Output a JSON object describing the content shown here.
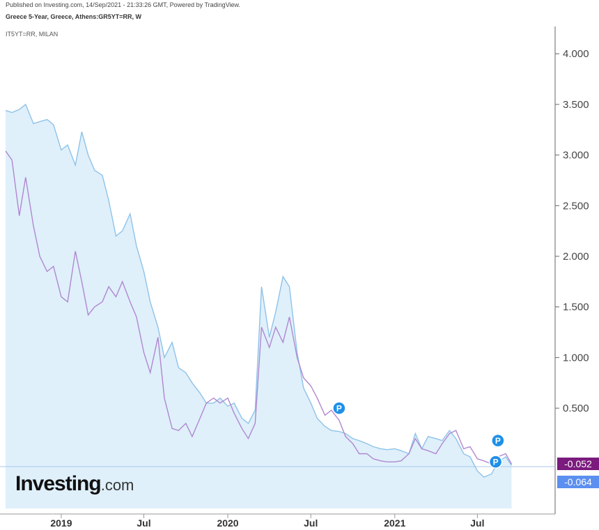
{
  "header": {
    "published": "Published on Investing.com, 14/Sep/2021 - 21:33:26 GMT, Powered by TradingView.",
    "title": "Greece 5-Year, Greece, Athens:GR5YT=RR, W",
    "compare": "IT5YT=RR, MILAN"
  },
  "logo": {
    "brand": "Investing",
    "suffix": ".com"
  },
  "price_tags": {
    "italy_last": "-0.052",
    "greece_last": "-0.064"
  },
  "colors": {
    "greece": "#8ec2e8",
    "greece_fill": "#dff0fb",
    "italy": "#b087d0",
    "italy_tag": "#7b1b7e",
    "greece_tag": "#5b8ff0",
    "marker": "#1e90e8"
  },
  "markers": {
    "label": "P",
    "count": 3
  },
  "chart_data": {
    "type": "line",
    "title": "Greece 5-Year, Greece, Athens:GR5YT=RR, W",
    "xlabel": "",
    "ylabel": "",
    "ylim": [
      -0.4,
      4.3
    ],
    "y_ticks": [
      "4.000",
      "3.500",
      "3.000",
      "2.500",
      "2.000",
      "1.500",
      "1.000",
      "0.500"
    ],
    "x_ticks": [
      "2019",
      "Jul",
      "2020",
      "Jul",
      "2021",
      "Jul"
    ],
    "x_tick_dates": [
      "2019-01-01",
      "2019-07-01",
      "2020-01-01",
      "2020-07-01",
      "2021-01-01",
      "2021-07-01"
    ],
    "x_range": [
      "2018-09-01",
      "2021-09-30"
    ],
    "series": [
      {
        "name": "Greece 5-Year",
        "points": [
          [
            "2018-09-01",
            3.44
          ],
          [
            "2018-09-15",
            3.42
          ],
          [
            "2018-10-01",
            3.45
          ],
          [
            "2018-10-15",
            3.5
          ],
          [
            "2018-11-01",
            3.31
          ],
          [
            "2018-11-15",
            3.33
          ],
          [
            "2018-12-01",
            3.35
          ],
          [
            "2018-12-15",
            3.3
          ],
          [
            "2019-01-01",
            3.05
          ],
          [
            "2019-01-15",
            3.1
          ],
          [
            "2019-02-01",
            2.9
          ],
          [
            "2019-02-15",
            3.23
          ],
          [
            "2019-03-01",
            3.0
          ],
          [
            "2019-03-15",
            2.85
          ],
          [
            "2019-04-01",
            2.8
          ],
          [
            "2019-04-15",
            2.55
          ],
          [
            "2019-05-01",
            2.2
          ],
          [
            "2019-05-15",
            2.25
          ],
          [
            "2019-06-01",
            2.42
          ],
          [
            "2019-06-15",
            2.1
          ],
          [
            "2019-07-01",
            1.85
          ],
          [
            "2019-07-15",
            1.55
          ],
          [
            "2019-08-01",
            1.3
          ],
          [
            "2019-08-15",
            1.0
          ],
          [
            "2019-09-01",
            1.15
          ],
          [
            "2019-09-15",
            0.9
          ],
          [
            "2019-10-01",
            0.85
          ],
          [
            "2019-10-15",
            0.75
          ],
          [
            "2019-11-01",
            0.65
          ],
          [
            "2019-11-15",
            0.55
          ],
          [
            "2019-12-01",
            0.55
          ],
          [
            "2019-12-15",
            0.6
          ],
          [
            "2020-01-01",
            0.52
          ],
          [
            "2020-01-15",
            0.55
          ],
          [
            "2020-02-01",
            0.4
          ],
          [
            "2020-02-15",
            0.35
          ],
          [
            "2020-03-01",
            0.48
          ],
          [
            "2020-03-15",
            1.7
          ],
          [
            "2020-04-01",
            1.2
          ],
          [
            "2020-04-15",
            1.45
          ],
          [
            "2020-05-01",
            1.8
          ],
          [
            "2020-05-15",
            1.7
          ],
          [
            "2020-06-01",
            1.05
          ],
          [
            "2020-06-15",
            0.7
          ],
          [
            "2020-07-01",
            0.55
          ],
          [
            "2020-07-15",
            0.4
          ],
          [
            "2020-08-01",
            0.32
          ],
          [
            "2020-08-15",
            0.28
          ],
          [
            "2020-09-01",
            0.27
          ],
          [
            "2020-09-15",
            0.25
          ],
          [
            "2020-10-01",
            0.2
          ],
          [
            "2020-10-15",
            0.18
          ],
          [
            "2020-11-01",
            0.15
          ],
          [
            "2020-11-15",
            0.12
          ],
          [
            "2020-12-01",
            0.1
          ],
          [
            "2020-12-15",
            0.09
          ],
          [
            "2021-01-01",
            0.1
          ],
          [
            "2021-01-15",
            0.08
          ],
          [
            "2021-02-01",
            0.05
          ],
          [
            "2021-02-15",
            0.25
          ],
          [
            "2021-03-01",
            0.1
          ],
          [
            "2021-03-15",
            0.22
          ],
          [
            "2021-04-01",
            0.2
          ],
          [
            "2021-04-15",
            0.18
          ],
          [
            "2021-05-01",
            0.28
          ],
          [
            "2021-05-15",
            0.2
          ],
          [
            "2021-06-01",
            0.05
          ],
          [
            "2021-06-15",
            0.02
          ],
          [
            "2021-07-01",
            -0.12
          ],
          [
            "2021-07-15",
            -0.18
          ],
          [
            "2021-08-01",
            -0.15
          ],
          [
            "2021-08-15",
            -0.03
          ],
          [
            "2021-09-01",
            0.02
          ],
          [
            "2021-09-14",
            -0.064
          ]
        ]
      },
      {
        "name": "IT5YT=RR, MILAN",
        "points": [
          [
            "2018-09-01",
            3.04
          ],
          [
            "2018-09-15",
            2.95
          ],
          [
            "2018-10-01",
            2.4
          ],
          [
            "2018-10-15",
            2.78
          ],
          [
            "2018-11-01",
            2.3
          ],
          [
            "2018-11-15",
            2.0
          ],
          [
            "2018-12-01",
            1.85
          ],
          [
            "2018-12-15",
            1.9
          ],
          [
            "2019-01-01",
            1.6
          ],
          [
            "2019-01-15",
            1.55
          ],
          [
            "2019-02-01",
            2.05
          ],
          [
            "2019-02-15",
            1.75
          ],
          [
            "2019-03-01",
            1.42
          ],
          [
            "2019-03-15",
            1.5
          ],
          [
            "2019-04-01",
            1.55
          ],
          [
            "2019-04-15",
            1.7
          ],
          [
            "2019-05-01",
            1.6
          ],
          [
            "2019-05-15",
            1.75
          ],
          [
            "2019-06-01",
            1.55
          ],
          [
            "2019-06-15",
            1.4
          ],
          [
            "2019-07-01",
            1.05
          ],
          [
            "2019-07-15",
            0.85
          ],
          [
            "2019-08-01",
            1.2
          ],
          [
            "2019-08-15",
            0.6
          ],
          [
            "2019-09-01",
            0.3
          ],
          [
            "2019-09-15",
            0.28
          ],
          [
            "2019-10-01",
            0.35
          ],
          [
            "2019-10-15",
            0.22
          ],
          [
            "2019-11-01",
            0.4
          ],
          [
            "2019-11-15",
            0.55
          ],
          [
            "2019-12-01",
            0.6
          ],
          [
            "2019-12-15",
            0.55
          ],
          [
            "2020-01-01",
            0.6
          ],
          [
            "2020-01-15",
            0.45
          ],
          [
            "2020-02-01",
            0.3
          ],
          [
            "2020-02-15",
            0.2
          ],
          [
            "2020-03-01",
            0.35
          ],
          [
            "2020-03-15",
            1.3
          ],
          [
            "2020-04-01",
            1.1
          ],
          [
            "2020-04-15",
            1.3
          ],
          [
            "2020-05-01",
            1.15
          ],
          [
            "2020-05-15",
            1.4
          ],
          [
            "2020-06-01",
            1.0
          ],
          [
            "2020-06-15",
            0.8
          ],
          [
            "2020-07-01",
            0.72
          ],
          [
            "2020-07-15",
            0.6
          ],
          [
            "2020-08-01",
            0.43
          ],
          [
            "2020-08-15",
            0.48
          ],
          [
            "2020-09-01",
            0.38
          ],
          [
            "2020-09-15",
            0.22
          ],
          [
            "2020-10-01",
            0.15
          ],
          [
            "2020-10-15",
            0.05
          ],
          [
            "2020-11-01",
            0.05
          ],
          [
            "2020-11-15",
            0.0
          ],
          [
            "2020-12-01",
            -0.02
          ],
          [
            "2020-12-15",
            -0.03
          ],
          [
            "2021-01-01",
            -0.03
          ],
          [
            "2021-01-15",
            -0.02
          ],
          [
            "2021-02-01",
            0.05
          ],
          [
            "2021-02-15",
            0.2
          ],
          [
            "2021-03-01",
            0.1
          ],
          [
            "2021-03-15",
            0.08
          ],
          [
            "2021-04-01",
            0.05
          ],
          [
            "2021-04-15",
            0.15
          ],
          [
            "2021-05-01",
            0.25
          ],
          [
            "2021-05-15",
            0.28
          ],
          [
            "2021-06-01",
            0.1
          ],
          [
            "2021-06-15",
            0.12
          ],
          [
            "2021-07-01",
            0.0
          ],
          [
            "2021-07-15",
            -0.02
          ],
          [
            "2021-08-01",
            -0.05
          ],
          [
            "2021-08-15",
            0.02
          ],
          [
            "2021-09-01",
            0.05
          ],
          [
            "2021-09-14",
            -0.052
          ]
        ]
      }
    ],
    "marker_dates": [
      [
        "2020-09-01",
        0.5
      ],
      [
        "2021-08-15",
        0.18
      ],
      [
        "2021-08-10",
        -0.03
      ]
    ],
    "last_values": {
      "IT5YT=RR, MILAN": -0.052,
      "Greece 5-Year": -0.064
    },
    "grid": false,
    "legend": "none"
  }
}
